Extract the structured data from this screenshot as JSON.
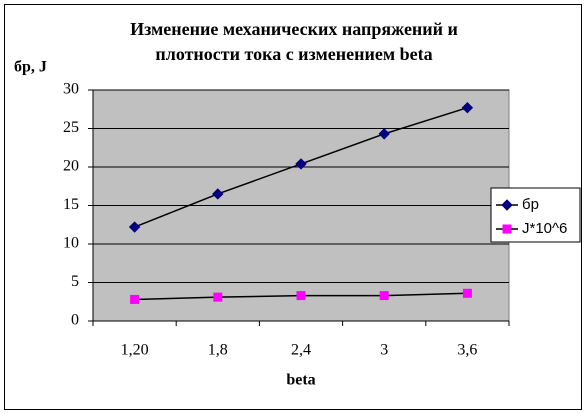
{
  "chart_data": {
    "type": "line",
    "title": [
      "Изменение механических напряжений и",
      "плотности тока с изменением beta"
    ],
    "y_label": "бр, J",
    "x_label": "beta",
    "categories": [
      "1,20",
      "1,8",
      "2,4",
      "3",
      "3,6"
    ],
    "series": [
      {
        "name": "бр",
        "color": "#000080",
        "line_color": "#000000",
        "marker": "diamond",
        "values": [
          12.2,
          16.5,
          20.4,
          24.3,
          27.7
        ]
      },
      {
        "name": "J*10^6",
        "color": "#ff00ff",
        "line_color": "#000000",
        "marker": "square",
        "values": [
          2.8,
          3.1,
          3.3,
          3.3,
          3.6
        ]
      }
    ],
    "ylim": [
      0,
      30
    ],
    "yticks": [
      0,
      5,
      10,
      15,
      20,
      25,
      30
    ],
    "grid": true,
    "plot_background": "#c0c0c0",
    "legend": "right"
  }
}
